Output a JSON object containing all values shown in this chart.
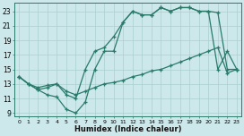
{
  "xlabel": "Humidex (Indice chaleur)",
  "bg_color": "#cce8ea",
  "grid_color": "#aacfcf",
  "line_color": "#2a7a6a",
  "xlim_min": -0.5,
  "xlim_max": 23.5,
  "ylim_min": 8.5,
  "ylim_max": 24.2,
  "xticks": [
    0,
    1,
    2,
    3,
    4,
    5,
    6,
    7,
    8,
    9,
    10,
    11,
    12,
    13,
    14,
    15,
    16,
    17,
    18,
    19,
    20,
    21,
    22,
    23
  ],
  "yticks": [
    9,
    11,
    13,
    15,
    17,
    19,
    21,
    23
  ],
  "curve_dip_x": [
    0,
    1,
    2,
    3,
    4,
    5,
    6,
    7,
    8,
    9,
    10,
    11,
    12,
    13,
    14,
    15,
    16,
    17,
    18,
    19,
    20,
    21,
    22,
    23
  ],
  "curve_dip_y": [
    14.0,
    13.0,
    12.2,
    11.5,
    11.2,
    9.5,
    9.0,
    10.5,
    15.0,
    17.5,
    17.5,
    21.5,
    23.0,
    22.5,
    22.5,
    23.5,
    23.0,
    23.5,
    23.5,
    23.0,
    23.0,
    15.0,
    17.5,
    15.0
  ],
  "curve_mid_x": [
    0,
    1,
    2,
    3,
    4,
    5,
    6,
    7,
    8,
    9,
    10,
    11,
    12,
    13,
    14,
    15,
    16,
    17,
    18,
    19,
    20,
    21,
    22,
    23
  ],
  "curve_mid_y": [
    14.0,
    13.0,
    12.2,
    12.5,
    13.0,
    11.5,
    11.0,
    15.0,
    17.5,
    18.0,
    19.5,
    21.5,
    23.0,
    22.5,
    22.5,
    23.5,
    23.0,
    23.5,
    23.5,
    23.0,
    23.0,
    22.8,
    15.0,
    15.0
  ],
  "curve_low_x": [
    0,
    1,
    2,
    3,
    4,
    5,
    6,
    7,
    8,
    9,
    10,
    11,
    12,
    13,
    14,
    15,
    16,
    17,
    18,
    19,
    20,
    21,
    22,
    23
  ],
  "curve_low_y": [
    14.0,
    13.0,
    12.5,
    12.8,
    13.0,
    12.0,
    11.5,
    12.0,
    12.5,
    13.0,
    13.2,
    13.5,
    14.0,
    14.3,
    14.8,
    15.0,
    15.5,
    16.0,
    16.5,
    17.0,
    17.5,
    18.0,
    14.5,
    15.0
  ]
}
